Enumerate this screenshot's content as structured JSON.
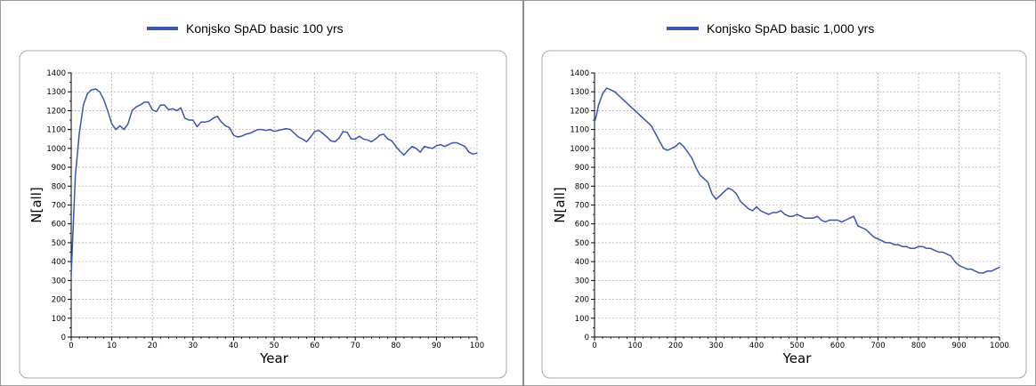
{
  "chart_data": [
    {
      "type": "line",
      "series": [
        {
          "name": "Konjsko SpAD basic 100 yrs",
          "color": "#3a56b0",
          "x": [
            0,
            1,
            2,
            3,
            4,
            5,
            6,
            7,
            8,
            9,
            10,
            11,
            12,
            13,
            14,
            15,
            16,
            17,
            18,
            19,
            20,
            21,
            22,
            23,
            24,
            25,
            26,
            27,
            28,
            29,
            30,
            31,
            32,
            33,
            34,
            35,
            36,
            37,
            38,
            39,
            40,
            41,
            42,
            43,
            44,
            45,
            46,
            47,
            48,
            49,
            50,
            51,
            52,
            53,
            54,
            55,
            56,
            57,
            58,
            59,
            60,
            61,
            62,
            63,
            64,
            65,
            66,
            67,
            68,
            69,
            70,
            71,
            72,
            73,
            74,
            75,
            76,
            77,
            78,
            79,
            80,
            81,
            82,
            83,
            84,
            85,
            86,
            87,
            88,
            89,
            90,
            91,
            92,
            93,
            94,
            95,
            96,
            97,
            98,
            99,
            100
          ],
          "values": [
            330,
            850,
            1080,
            1230,
            1290,
            1310,
            1315,
            1300,
            1260,
            1200,
            1130,
            1100,
            1120,
            1100,
            1130,
            1200,
            1220,
            1230,
            1245,
            1245,
            1205,
            1195,
            1230,
            1230,
            1205,
            1210,
            1200,
            1215,
            1160,
            1150,
            1150,
            1115,
            1140,
            1140,
            1145,
            1160,
            1170,
            1140,
            1120,
            1110,
            1070,
            1060,
            1065,
            1075,
            1080,
            1090,
            1100,
            1100,
            1095,
            1100,
            1090,
            1095,
            1100,
            1105,
            1100,
            1080,
            1060,
            1050,
            1035,
            1060,
            1090,
            1095,
            1080,
            1060,
            1040,
            1035,
            1055,
            1090,
            1085,
            1050,
            1050,
            1065,
            1050,
            1045,
            1035,
            1050,
            1070,
            1075,
            1050,
            1040,
            1010,
            985,
            965,
            990,
            1010,
            1000,
            980,
            1010,
            1005,
            1000,
            1015,
            1020,
            1010,
            1020,
            1030,
            1030,
            1020,
            1010,
            980,
            970,
            975
          ]
        }
      ],
      "xlabel": "Year",
      "ylabel": "N[all]",
      "xlim": [
        0,
        100
      ],
      "ylim": [
        0,
        1400
      ],
      "x_ticks": [
        0,
        10,
        20,
        30,
        40,
        50,
        60,
        70,
        80,
        90,
        100
      ],
      "y_ticks": [
        0,
        100,
        200,
        300,
        400,
        500,
        600,
        700,
        800,
        900,
        1000,
        1100,
        1200,
        1300,
        1400
      ],
      "grid": true,
      "legend": "top-center"
    },
    {
      "type": "line",
      "series": [
        {
          "name": "Konjsko SpAD basic 1,000 yrs",
          "color": "#3a56b0",
          "x": [
            0,
            5,
            10,
            20,
            30,
            40,
            50,
            60,
            70,
            80,
            90,
            100,
            110,
            120,
            130,
            140,
            150,
            160,
            170,
            180,
            190,
            200,
            210,
            220,
            230,
            240,
            250,
            260,
            270,
            280,
            290,
            300,
            310,
            320,
            330,
            340,
            350,
            360,
            370,
            380,
            390,
            400,
            410,
            420,
            430,
            440,
            450,
            460,
            470,
            480,
            490,
            500,
            510,
            520,
            530,
            540,
            550,
            560,
            570,
            580,
            590,
            600,
            610,
            620,
            630,
            640,
            650,
            660,
            670,
            680,
            690,
            700,
            710,
            720,
            730,
            740,
            750,
            760,
            770,
            780,
            790,
            800,
            810,
            820,
            830,
            840,
            850,
            860,
            870,
            880,
            890,
            900,
            910,
            920,
            930,
            940,
            950,
            960,
            970,
            980,
            990,
            1000
          ],
          "values": [
            1140,
            1180,
            1230,
            1290,
            1320,
            1310,
            1300,
            1280,
            1260,
            1240,
            1220,
            1200,
            1180,
            1160,
            1140,
            1120,
            1080,
            1040,
            1000,
            990,
            1000,
            1010,
            1030,
            1010,
            980,
            950,
            900,
            860,
            840,
            820,
            760,
            730,
            750,
            770,
            790,
            780,
            760,
            720,
            700,
            680,
            670,
            690,
            670,
            660,
            650,
            660,
            660,
            670,
            650,
            640,
            640,
            650,
            640,
            630,
            630,
            630,
            640,
            620,
            610,
            620,
            620,
            620,
            610,
            620,
            630,
            640,
            590,
            580,
            570,
            550,
            530,
            520,
            510,
            500,
            500,
            490,
            490,
            480,
            480,
            470,
            470,
            480,
            480,
            470,
            470,
            460,
            450,
            450,
            440,
            430,
            400,
            380,
            370,
            360,
            360,
            350,
            340,
            340,
            350,
            350,
            360,
            370
          ]
        }
      ],
      "xlabel": "Year",
      "ylabel": "N[all]",
      "xlim": [
        0,
        1000
      ],
      "ylim": [
        0,
        1400
      ],
      "x_ticks": [
        0,
        100,
        200,
        300,
        400,
        500,
        600,
        700,
        800,
        900,
        1000
      ],
      "y_ticks": [
        0,
        100,
        200,
        300,
        400,
        500,
        600,
        700,
        800,
        900,
        1000,
        1100,
        1200,
        1300,
        1400
      ],
      "grid": true,
      "legend": "top-center"
    }
  ]
}
